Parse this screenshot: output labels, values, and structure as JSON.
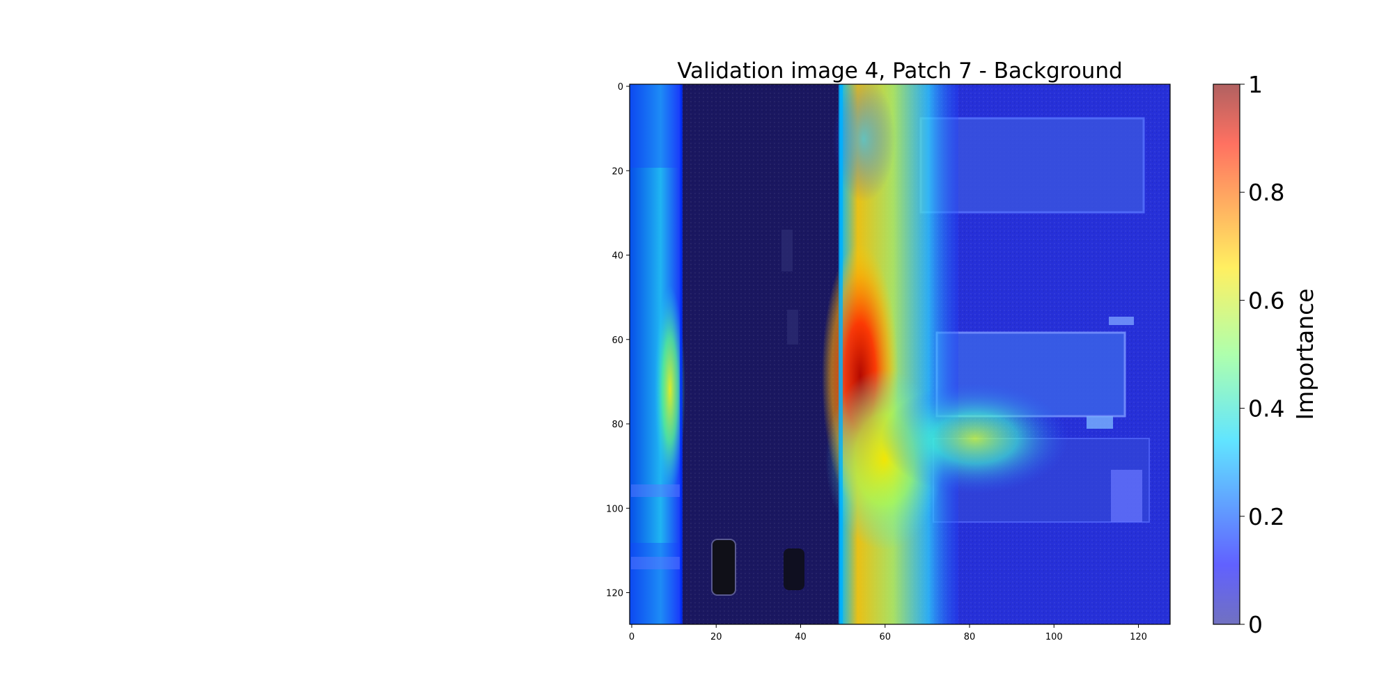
{
  "chart_data": {
    "type": "heatmap",
    "title": "Validation image 4, Patch 7 - Background",
    "xlabel": "",
    "ylabel": "",
    "xlim": [
      0,
      128
    ],
    "ylim": [
      128,
      0
    ],
    "x_ticks": [
      "0",
      "20",
      "40",
      "60",
      "80",
      "100",
      "120"
    ],
    "y_ticks": [
      "0",
      "20",
      "40",
      "60",
      "80",
      "100",
      "120"
    ],
    "x_tick_values": [
      0,
      20,
      40,
      60,
      80,
      100,
      120
    ],
    "y_tick_values": [
      0,
      20,
      40,
      60,
      80,
      100,
      120
    ],
    "colormap": "jet",
    "overlay_alpha": 0.6,
    "colorbar": {
      "label": "Importance",
      "range": [
        0,
        1
      ],
      "ticks": [
        "0",
        "0.2",
        "0.4",
        "0.6",
        "0.8",
        "1"
      ],
      "tick_values": [
        0,
        0.2,
        0.4,
        0.6,
        0.8,
        1
      ]
    },
    "grid": false,
    "hotspots": [
      {
        "x": 53,
        "y": 70,
        "value": 1.0
      },
      {
        "x": 56,
        "y": 85,
        "value": 0.8
      },
      {
        "x": 10,
        "y": 75,
        "value": 0.6
      },
      {
        "x": 82,
        "y": 86,
        "value": 0.6
      }
    ]
  }
}
